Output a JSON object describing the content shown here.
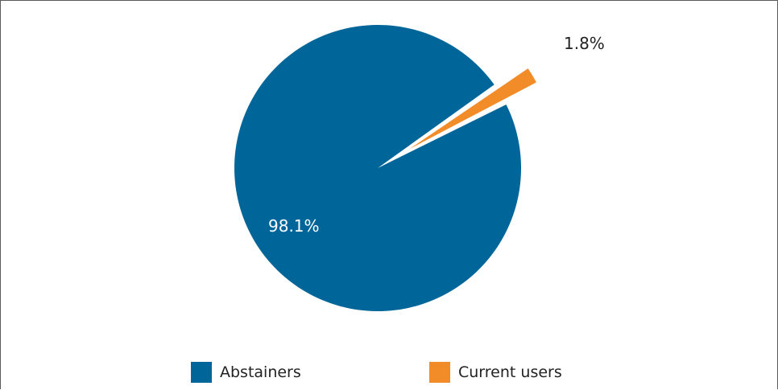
{
  "chart_data": {
    "type": "pie",
    "title": "",
    "slices": [
      {
        "name": "Abstainers",
        "value": 98.1,
        "label": "98.1%",
        "color": "#006699",
        "label_color": "#ffffff"
      },
      {
        "name": "Current users",
        "value": 1.8,
        "label": "1.8%",
        "color": "#f28c28",
        "label_color": "#222222",
        "exploded": true
      }
    ],
    "legend_placement": "bottom"
  }
}
